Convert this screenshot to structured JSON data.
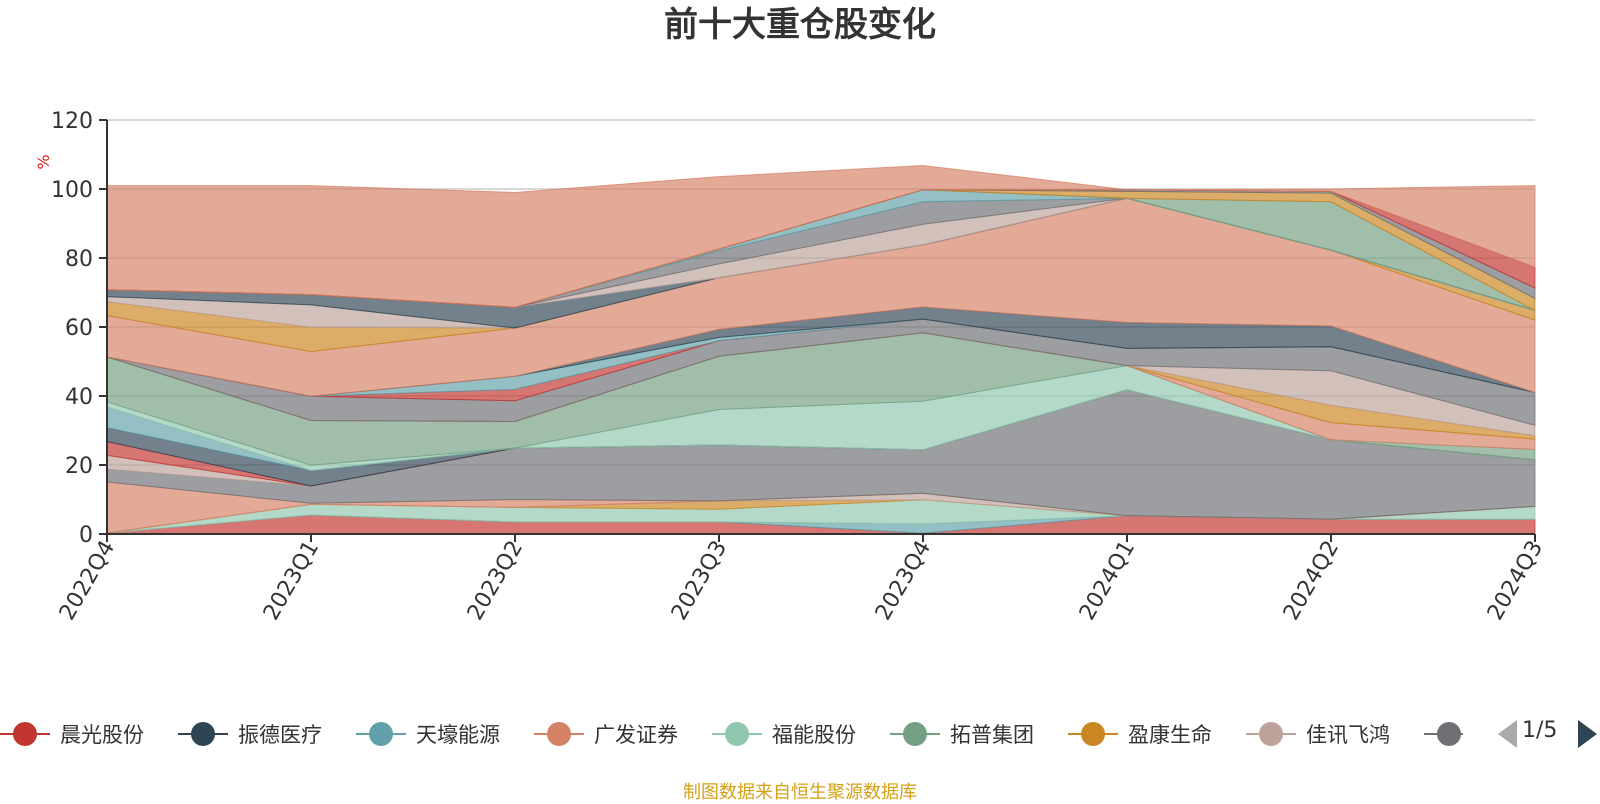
{
  "source_note": "制图数据来自恒生聚源数据库",
  "legend": {
    "items": [
      {
        "label": "晨光股份",
        "color": "#c23531"
      },
      {
        "label": "振德医疗",
        "color": "#2f4554"
      },
      {
        "label": "天壕能源",
        "color": "#61a0a8"
      },
      {
        "label": "广发证券",
        "color": "#d48265"
      },
      {
        "label": "福能股份",
        "color": "#91c7ae"
      },
      {
        "label": "拓普集团",
        "color": "#749f83"
      },
      {
        "label": "盈康生命",
        "color": "#ca8622"
      },
      {
        "label": "佳讯飞鸿",
        "color": "#bda29a"
      },
      {
        "label": "…",
        "color": "#6e7074"
      }
    ],
    "pager": "1/5"
  },
  "chart_data": {
    "type": "area",
    "title": "前十大重仓股变化",
    "ylabel": "%",
    "ylim": [
      0,
      120
    ],
    "yticks": [
      0,
      20,
      40,
      60,
      80,
      100,
      120
    ],
    "categories": [
      "2022Q4",
      "2023Q1",
      "2023Q2",
      "2023Q3",
      "2023Q4",
      "2024Q1",
      "2024Q2",
      "2024Q3"
    ],
    "grid": true,
    "stack_note": "stacked cumulative percentages, top at 100",
    "series": [
      {
        "color": "#c23531",
        "values": [
          0.3,
          5.5,
          3.5,
          3.5,
          0.2,
          5.3,
          4.3,
          4.3
        ]
      },
      {
        "color": "#61a0a8",
        "values": [
          0.0,
          0.0,
          0.0,
          0.0,
          2.7,
          0.0,
          0.0,
          0.0
        ]
      },
      {
        "color": "#91c7ae",
        "values": [
          0.0,
          3.1,
          4.2,
          3.7,
          7.0,
          0.0,
          0.0,
          3.7
        ]
      },
      {
        "color": "#ca8622",
        "values": [
          0.0,
          0.0,
          0.0,
          2.4,
          0.0,
          0.0,
          0.0,
          0.0
        ]
      },
      {
        "color": "#bda29a",
        "values": [
          0.0,
          0.0,
          0.0,
          0.0,
          1.9,
          0.0,
          0.0,
          0.0
        ]
      },
      {
        "color": "#d48265",
        "values": [
          14.8,
          0.3,
          2.3,
          0.0,
          0.0,
          0.0,
          0.0,
          0.0
        ]
      },
      {
        "color": "#6e7074",
        "values": [
          3.7,
          5.0,
          14.9,
          16.2,
          12.6,
          36.5,
          23.0,
          13.5
        ]
      },
      {
        "color": "#bda29a",
        "values": [
          4.0,
          0.0,
          0.0,
          0.0,
          0.0,
          0.0,
          0.0,
          0.0
        ]
      },
      {
        "color": "#c23531",
        "values": [
          4.0,
          0.0,
          0.0,
          0.0,
          0.0,
          0.0,
          0.0,
          0.0
        ]
      },
      {
        "color": "#2f4554",
        "values": [
          4.0,
          4.5,
          0.0,
          0.0,
          0.0,
          0.0,
          0.0,
          0.0
        ]
      },
      {
        "color": "#61a0a8",
        "values": [
          6.0,
          0.0,
          0.0,
          0.0,
          0.0,
          0.0,
          0.0,
          0.0
        ]
      },
      {
        "color": "#91c7ae",
        "values": [
          1.5,
          1.5,
          0.0,
          10.3,
          14.1,
          7.0,
          0.0,
          0.0
        ]
      },
      {
        "color": "#749f83",
        "values": [
          13.0,
          13.0,
          7.7,
          15.4,
          19.8,
          0.0,
          0.0,
          3.0
        ]
      },
      {
        "color": "#d48265",
        "values": [
          0.0,
          0.0,
          0.0,
          0.0,
          0.0,
          0.0,
          5.0,
          3.0
        ]
      },
      {
        "color": "#ca8622",
        "values": [
          0.0,
          0.0,
          0.0,
          0.0,
          0.0,
          0.0,
          5.0,
          1.0
        ]
      },
      {
        "color": "#bda29a",
        "values": [
          0.0,
          0.0,
          0.0,
          0.0,
          0.0,
          0.0,
          10.0,
          3.0
        ]
      },
      {
        "color": "#6e7074",
        "values": [
          0.0,
          7.0,
          6.0,
          4.5,
          4.0,
          5.0,
          7.0,
          9.5
        ]
      },
      {
        "color": "#c23531",
        "values": [
          0.0,
          0.0,
          3.3,
          0.0,
          0.0,
          0.0,
          0.0,
          0.0
        ]
      },
      {
        "color": "#61a0a8",
        "values": [
          0.0,
          0.0,
          3.8,
          1.0,
          0.0,
          0.0,
          0.0,
          0.0
        ]
      },
      {
        "color": "#2f4554",
        "values": [
          0.0,
          0.0,
          0.0,
          2.3,
          3.5,
          7.5,
          6.0,
          0.0
        ]
      },
      {
        "color": "#d48265",
        "values": [
          12.0,
          13.0,
          14.0,
          15.0,
          18.0,
          36.0,
          22.0,
          21.0
        ]
      },
      {
        "color": "#ca8622",
        "values": [
          4.0,
          7.0,
          0.0,
          0.0,
          0.0,
          0.0,
          0.0,
          2.8
        ]
      },
      {
        "color": "#bda29a",
        "values": [
          1.5,
          6.5,
          0.0,
          0.0,
          0.0,
          0.0,
          0.0,
          0.0
        ]
      },
      {
        "color": "#2f4554",
        "values": [
          2.0,
          3.0,
          6.0,
          0.0,
          0.0,
          0.0,
          0.0,
          0.0
        ]
      },
      {
        "color": "#bda29a",
        "values": [
          0.0,
          0.0,
          0.0,
          4.0,
          6.0,
          0.0,
          0.0,
          0.0
        ]
      },
      {
        "color": "#6e7074",
        "values": [
          0.0,
          0.0,
          0.0,
          3.8,
          6.5,
          0.0,
          0.0,
          0.0
        ]
      },
      {
        "color": "#61a0a8",
        "values": [
          0.0,
          0.0,
          0.0,
          0.5,
          3.5,
          0.0,
          0.0,
          0.0
        ]
      },
      {
        "color": "#749f83",
        "values": [
          0.0,
          0.0,
          0.0,
          0.0,
          0.0,
          0.0,
          14.0,
          0.0
        ]
      },
      {
        "color": "#ca8622",
        "values": [
          0.0,
          0.0,
          0.0,
          0.0,
          0.0,
          2.0,
          2.5,
          3.5
        ]
      },
      {
        "color": "#6e7074",
        "values": [
          0.0,
          0.0,
          0.0,
          0.0,
          0.0,
          0.5,
          0.5,
          3.0
        ]
      },
      {
        "color": "#c23531",
        "values": [
          0.0,
          0.0,
          0.0,
          0.0,
          0.0,
          0.0,
          0.0,
          6.0
        ]
      },
      {
        "color": "#d48265",
        "values": [
          30.2,
          31.6,
          33.3,
          21.0,
          7.0,
          0.0,
          0.7,
          23.7
        ]
      }
    ]
  }
}
